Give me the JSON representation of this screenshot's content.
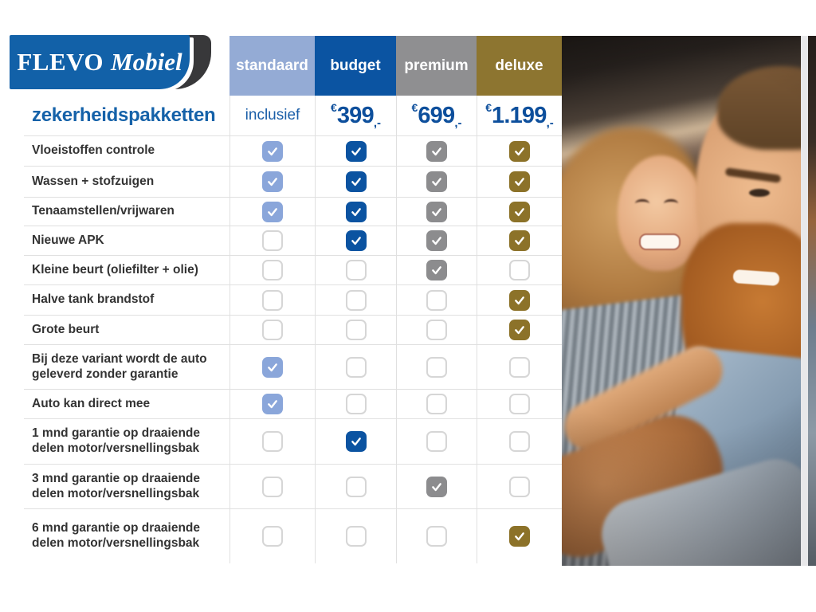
{
  "brand": {
    "name_primary": "FLEVO",
    "name_secondary": "Mobiel",
    "title": "zekerheidspakketten"
  },
  "price_text_color": "#0d4f9c",
  "packages": [
    {
      "label": "standaard",
      "header_color": "#94abd5",
      "check_color": "#8aa6da",
      "price": {
        "text": "inclusief"
      }
    },
    {
      "label": "budget",
      "header_color": "#0b54a2",
      "check_color": "#0b53a1",
      "price": {
        "currency": "€",
        "amount": "399",
        "suffix": ",-"
      }
    },
    {
      "label": "premium",
      "header_color": "#8f8f91",
      "check_color": "#8c8c8e",
      "price": {
        "currency": "€",
        "amount": "699",
        "suffix": ",-"
      }
    },
    {
      "label": "deluxe",
      "header_color": "#8d7530",
      "check_color": "#8c7229",
      "price": {
        "currency": "€",
        "amount": "1.199",
        "suffix": ",-"
      }
    }
  ],
  "features": [
    {
      "label": "Vloeistoffen controle",
      "included": [
        true,
        true,
        true,
        true
      ]
    },
    {
      "label": "Wassen + stofzuigen",
      "included": [
        true,
        true,
        true,
        true
      ]
    },
    {
      "label": "Tenaamstellen/vrijwaren",
      "included": [
        true,
        true,
        true,
        true
      ]
    },
    {
      "label": "Nieuwe APK",
      "included": [
        false,
        true,
        true,
        true
      ]
    },
    {
      "label": "Kleine beurt (oliefilter + olie)",
      "included": [
        false,
        false,
        true,
        false
      ]
    },
    {
      "label": "Halve tank brandstof",
      "included": [
        false,
        false,
        false,
        true
      ]
    },
    {
      "label": "Grote beurt",
      "included": [
        false,
        false,
        false,
        true
      ]
    },
    {
      "label": "Bij deze variant wordt de auto geleverd zonder garantie",
      "included": [
        true,
        false,
        false,
        false
      ]
    },
    {
      "label": "Auto kan direct mee",
      "included": [
        true,
        false,
        false,
        false
      ]
    },
    {
      "label": "1 mnd garantie op draaiende delen motor/versnellingsbak",
      "included": [
        false,
        true,
        false,
        false
      ]
    },
    {
      "label": "3 mnd garantie op draaiende delen motor/versnellingsbak",
      "included": [
        false,
        false,
        true,
        false
      ]
    },
    {
      "label": "6 mnd garantie op draaiende delen motor/versnellingsbak",
      "included": [
        false,
        false,
        false,
        true
      ]
    }
  ],
  "photo": {
    "alt": "Smiling couple sitting together in a car"
  }
}
